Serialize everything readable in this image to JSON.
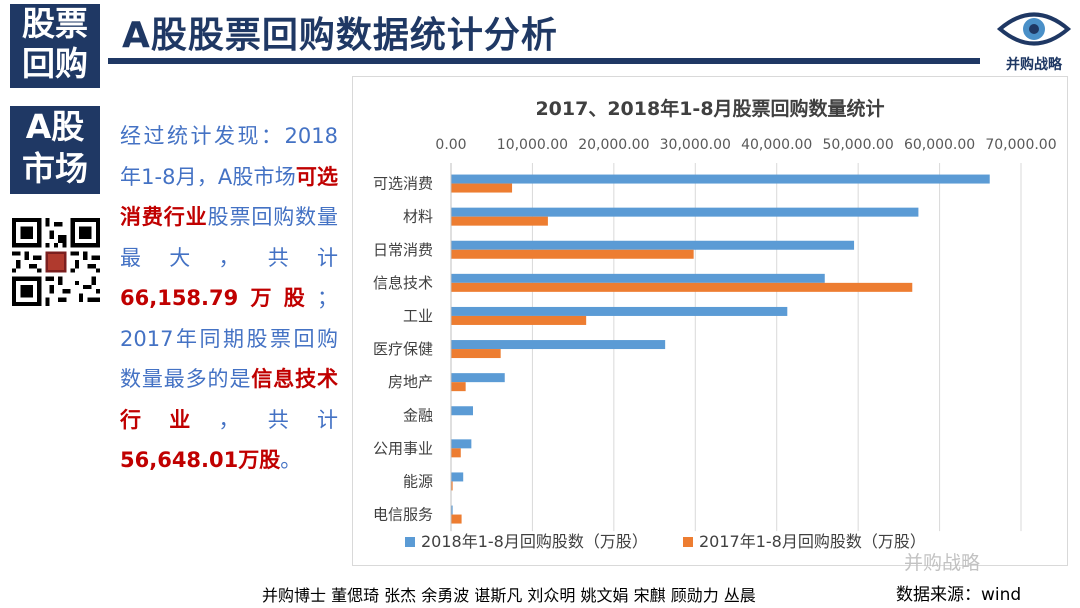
{
  "tags": {
    "line1a": "股票",
    "line1b": "回购",
    "line2a": "A股",
    "line2b": "市场"
  },
  "header": {
    "title": "A股股票回购数据统计分析",
    "logo_text": "并购战略"
  },
  "summary": {
    "p1": "经过统计发现：2018年1-8月，A股市场",
    "hl1": "可选消费行业",
    "p2": "股票回购数量最大，共计",
    "num1": "66,158.79万股",
    "p3": "；2017年同期股票回购数量最多的是",
    "hl2": "信息技术行业",
    "p4": "，共计",
    "num2": "56,648.01万股",
    "p5": "。"
  },
  "footer": {
    "authors": "并购博士 董偲琦 张杰 余勇波 谌斯凡 刘众明 姚文娟 宋麒 顾勋力 丛晨",
    "source": "数据来源：wind",
    "watermark": "并购战略"
  },
  "colors": {
    "series2018": "#5b9bd5",
    "series2017": "#ed7d31",
    "navy": "#1f3864",
    "accent_text": "#4472c4",
    "highlight": "#c00000"
  },
  "chart_data": {
    "type": "bar",
    "orientation": "horizontal",
    "title": "2017、2018年1-8月股票回购数量统计",
    "categories": [
      "可选消费",
      "材料",
      "日常消费",
      "信息技术",
      "工业",
      "医疗保健",
      "房地产",
      "金融",
      "公用事业",
      "能源",
      "电信服务"
    ],
    "series": [
      {
        "name": "2018年1-8月回购股数（万股）",
        "values": [
          66158.79,
          57400,
          49500,
          45900,
          41300,
          26300,
          6600,
          2700,
          2500,
          1500,
          200
        ]
      },
      {
        "name": "2017年1-8月回购股数（万股）",
        "values": [
          7500,
          11900,
          29800,
          56648.01,
          16600,
          6100,
          1800,
          0,
          1200,
          200,
          1300
        ]
      }
    ],
    "xlim": [
      0,
      70000
    ],
    "xticks": [
      "0.00",
      "10,000.00",
      "20,000.00",
      "30,000.00",
      "40,000.00",
      "50,000.00",
      "60,000.00",
      "70,000.00"
    ],
    "xtick_values": [
      0,
      10000,
      20000,
      30000,
      40000,
      50000,
      60000,
      70000
    ],
    "grid": true,
    "legend": "bottom",
    "axis_position": "top"
  }
}
